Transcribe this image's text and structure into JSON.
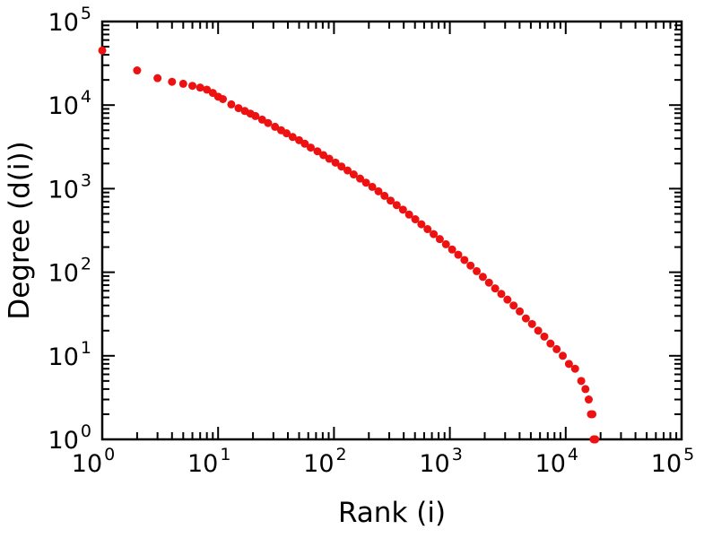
{
  "chart_data": {
    "type": "scatter",
    "title": "",
    "xlabel": "Rank (i)",
    "ylabel": "Degree (d(i))",
    "x_scale": "log",
    "y_scale": "log",
    "xlim": [
      1,
      100000
    ],
    "ylim": [
      1,
      100000
    ],
    "x_tick_exponents": [
      0,
      1,
      2,
      3,
      4,
      5
    ],
    "y_tick_exponents": [
      0,
      1,
      2,
      3,
      4,
      5
    ],
    "tick_base": "10",
    "grid": false,
    "frame": true,
    "legend": "none",
    "marker": {
      "shape": "circle",
      "color": "#ee1111",
      "size": 4.5
    },
    "frame_color": "#000000",
    "background_color": "#ffffff",
    "points": [
      [
        1,
        45000
      ],
      [
        2,
        26000
      ],
      [
        3,
        21000
      ],
      [
        4,
        19000
      ],
      [
        5,
        18000
      ],
      [
        6,
        17000
      ],
      [
        7,
        16200
      ],
      [
        8,
        15300
      ],
      [
        9,
        14000
      ],
      [
        10,
        12600
      ],
      [
        11,
        11800
      ],
      [
        13,
        10200
      ],
      [
        15,
        9200
      ],
      [
        17,
        8500
      ],
      [
        19,
        7900
      ],
      [
        21,
        7400
      ],
      [
        24,
        6700
      ],
      [
        27,
        6100
      ],
      [
        31,
        5500
      ],
      [
        35,
        5000
      ],
      [
        39,
        4600
      ],
      [
        44,
        4150
      ],
      [
        50,
        3800
      ],
      [
        56,
        3450
      ],
      [
        63,
        3100
      ],
      [
        72,
        2800
      ],
      [
        81,
        2520
      ],
      [
        91,
        2280
      ],
      [
        103,
        2050
      ],
      [
        116,
        1840
      ],
      [
        131,
        1650
      ],
      [
        148,
        1480
      ],
      [
        168,
        1320
      ],
      [
        189,
        1180
      ],
      [
        214,
        1050
      ],
      [
        242,
        930
      ],
      [
        273,
        820
      ],
      [
        308,
        720
      ],
      [
        348,
        635
      ],
      [
        394,
        560
      ],
      [
        445,
        490
      ],
      [
        503,
        430
      ],
      [
        568,
        375
      ],
      [
        642,
        328
      ],
      [
        725,
        286
      ],
      [
        819,
        249
      ],
      [
        926,
        216
      ],
      [
        1046,
        187
      ],
      [
        1182,
        162
      ],
      [
        1336,
        140
      ],
      [
        1509,
        120
      ],
      [
        1705,
        103
      ],
      [
        1927,
        88
      ],
      [
        2177,
        75
      ],
      [
        2460,
        64
      ],
      [
        2780,
        55
      ],
      [
        3141,
        47
      ],
      [
        3550,
        40
      ],
      [
        4011,
        34
      ],
      [
        4532,
        28
      ],
      [
        5121,
        24
      ],
      [
        5787,
        20
      ],
      [
        6539,
        17
      ],
      [
        7389,
        14
      ],
      [
        8350,
        12
      ],
      [
        9435,
        10
      ],
      [
        10662,
        8
      ],
      [
        12048,
        7
      ],
      [
        13614,
        5
      ],
      [
        14800,
        4
      ],
      [
        15800,
        3
      ],
      [
        16500,
        2
      ],
      [
        17000,
        2
      ],
      [
        17400,
        1
      ],
      [
        17700,
        1
      ],
      [
        17900,
        1
      ],
      [
        18000,
        1
      ]
    ]
  }
}
